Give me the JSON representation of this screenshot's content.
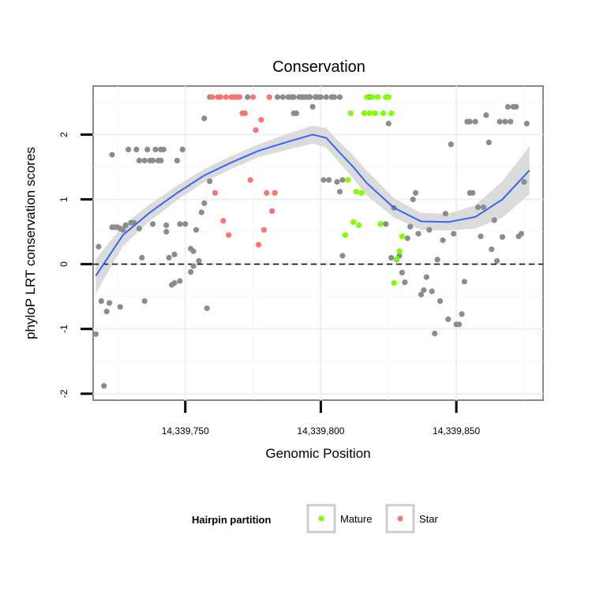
{
  "chart_data": {
    "type": "scatter",
    "title": "Conservation",
    "xlabel": "Genomic Position",
    "ylabel": "phyloP LRT conservation scores",
    "xlim": [
      14339716,
      14339882
    ],
    "ylim": [
      -2.1,
      2.75
    ],
    "x_ticks": [
      {
        "value": 14339750,
        "label": "14,339,750"
      },
      {
        "value": 14339800,
        "label": "14,339,800"
      },
      {
        "value": 14339850,
        "label": "14,339,850"
      }
    ],
    "y_ticks": [
      {
        "value": -2,
        "label": "-2"
      },
      {
        "value": -1,
        "label": "-1"
      },
      {
        "value": 0,
        "label": "0"
      },
      {
        "value": 1,
        "label": "1"
      },
      {
        "value": 2,
        "label": "2"
      }
    ],
    "reference_line": {
      "y": 0,
      "style": "dashed"
    },
    "legend": {
      "title": "Hairpin partition",
      "position": "bottom",
      "entries": [
        {
          "label": "Mature",
          "color": "#7fff00"
        },
        {
          "label": "Star",
          "color": "#f8766d"
        }
      ]
    },
    "colors": {
      "other": "#8c8c8c",
      "Mature": "#7fff00",
      "Star": "#f8766d",
      "smooth": "#3366ff",
      "band": "#d9d9d9"
    },
    "series": [
      {
        "name": "Other",
        "points": [
          [
            14339717,
            -1.08
          ],
          [
            14339718,
            0.27
          ],
          [
            14339719,
            -0.57
          ],
          [
            14339720,
            -1.88
          ],
          [
            14339721,
            -0.73
          ],
          [
            14339722,
            -0.6
          ],
          [
            14339723,
            1.69
          ],
          [
            14339723,
            0.57
          ],
          [
            14339724,
            0.57
          ],
          [
            14339725,
            0.57
          ],
          [
            14339726,
            -0.66
          ],
          [
            14339726,
            0.55
          ],
          [
            14339727,
            0.53
          ],
          [
            14339728,
            0.6
          ],
          [
            14339729,
            1.77
          ],
          [
            14339730,
            0.64
          ],
          [
            14339731,
            0.64
          ],
          [
            14339732,
            1.77
          ],
          [
            14339733,
            0.55
          ],
          [
            14339733,
            1.6
          ],
          [
            14339734,
            0.1
          ],
          [
            14339735,
            1.6
          ],
          [
            14339735,
            -0.57
          ],
          [
            14339736,
            1.77
          ],
          [
            14339737,
            1.6
          ],
          [
            14339738,
            0.62
          ],
          [
            14339738,
            1.6
          ],
          [
            14339739,
            1.77
          ],
          [
            14339740,
            1.6
          ],
          [
            14339741,
            1.77
          ],
          [
            14339741,
            1.6
          ],
          [
            14339742,
            1.77
          ],
          [
            14339743,
            0.6
          ],
          [
            14339743,
            0.5
          ],
          [
            14339744,
            0.1
          ],
          [
            14339745,
            -0.32
          ],
          [
            14339746,
            0.15
          ],
          [
            14339746,
            -0.29
          ],
          [
            14339747,
            1.6
          ],
          [
            14339748,
            0.62
          ],
          [
            14339748,
            -0.26
          ],
          [
            14339749,
            1.77
          ],
          [
            14339750,
            0.62
          ],
          [
            14339752,
            0.24
          ],
          [
            14339752,
            -0.12
          ],
          [
            14339753,
            0.2
          ],
          [
            14339753,
            -0.03
          ],
          [
            14339754,
            0.53
          ],
          [
            14339755,
            0.05
          ],
          [
            14339756,
            0.8
          ],
          [
            14339757,
            0.94
          ],
          [
            14339757,
            2.25
          ],
          [
            14339758,
            -0.68
          ],
          [
            14339759,
            1.28
          ],
          [
            14339759,
            2.58
          ],
          [
            14339773,
            2.58
          ],
          [
            14339784,
            2.58
          ],
          [
            14339786,
            2.58
          ],
          [
            14339788,
            2.58
          ],
          [
            14339789,
            2.58
          ],
          [
            14339790,
            2.58
          ],
          [
            14339790,
            2.33
          ],
          [
            14339791,
            2.33
          ],
          [
            14339792,
            2.58
          ],
          [
            14339793,
            2.58
          ],
          [
            14339794,
            2.58
          ],
          [
            14339795,
            2.58
          ],
          [
            14339796,
            2.58
          ],
          [
            14339797,
            2.43
          ],
          [
            14339798,
            2.58
          ],
          [
            14339799,
            2.58
          ],
          [
            14339800,
            2.58
          ],
          [
            14339801,
            1.3
          ],
          [
            14339802,
            2.58
          ],
          [
            14339803,
            1.3
          ],
          [
            14339804,
            2.58
          ],
          [
            14339805,
            2.58
          ],
          [
            14339806,
            1.27
          ],
          [
            14339807,
            2.58
          ],
          [
            14339807,
            1.12
          ],
          [
            14339808,
            1.3
          ],
          [
            14339808,
            0.13
          ],
          [
            14339818,
            2.58
          ],
          [
            14339824,
            0.62
          ],
          [
            14339825,
            2.17
          ],
          [
            14339826,
            0.1
          ],
          [
            14339827,
            0.87
          ],
          [
            14339828,
            0.07
          ],
          [
            14339829,
            0.13
          ],
          [
            14339830,
            -0.13
          ],
          [
            14339831,
            -0.28
          ],
          [
            14339832,
            0.4
          ],
          [
            14339833,
            0.58
          ],
          [
            14339834,
            1.0
          ],
          [
            14339835,
            1.1
          ],
          [
            14339836,
            0.47
          ],
          [
            14339837,
            -0.47
          ],
          [
            14339838,
            -0.4
          ],
          [
            14339839,
            -0.2
          ],
          [
            14339840,
            0.53
          ],
          [
            14339841,
            -0.42
          ],
          [
            14339842,
            -1.07
          ],
          [
            14339843,
            0.07
          ],
          [
            14339844,
            -0.57
          ],
          [
            14339845,
            0.37
          ],
          [
            14339846,
            0.78
          ],
          [
            14339847,
            -0.85
          ],
          [
            14339848,
            1.85
          ],
          [
            14339849,
            0.47
          ],
          [
            14339850,
            -0.93
          ],
          [
            14339851,
            -0.93
          ],
          [
            14339852,
            -0.77
          ],
          [
            14339853,
            -0.27
          ],
          [
            14339854,
            2.2
          ],
          [
            14339855,
            2.2
          ],
          [
            14339855,
            1.1
          ],
          [
            14339856,
            1.1
          ],
          [
            14339857,
            2.2
          ],
          [
            14339858,
            0.88
          ],
          [
            14339859,
            0.43
          ],
          [
            14339860,
            0.88
          ],
          [
            14339861,
            2.3
          ],
          [
            14339862,
            1.88
          ],
          [
            14339863,
            0.23
          ],
          [
            14339864,
            0.68
          ],
          [
            14339865,
            0.05
          ],
          [
            14339866,
            2.2
          ],
          [
            14339867,
            0.42
          ],
          [
            14339868,
            2.2
          ],
          [
            14339869,
            2.43
          ],
          [
            14339870,
            2.2
          ],
          [
            14339871,
            2.43
          ],
          [
            14339872,
            2.43
          ],
          [
            14339873,
            0.43
          ],
          [
            14339874,
            0.47
          ],
          [
            14339875,
            1.27
          ],
          [
            14339876,
            2.17
          ]
        ]
      },
      {
        "name": "Star",
        "points": [
          [
            14339760,
            2.58
          ],
          [
            14339761,
            1.1
          ],
          [
            14339762,
            2.58
          ],
          [
            14339763,
            2.58
          ],
          [
            14339764,
            0.67
          ],
          [
            14339765,
            2.58
          ],
          [
            14339766,
            0.45
          ],
          [
            14339767,
            2.58
          ],
          [
            14339768,
            2.58
          ],
          [
            14339769,
            2.58
          ],
          [
            14339770,
            2.58
          ],
          [
            14339771,
            2.33
          ],
          [
            14339772,
            2.33
          ],
          [
            14339774,
            1.3
          ],
          [
            14339775,
            2.58
          ],
          [
            14339776,
            2.07
          ],
          [
            14339777,
            0.3
          ],
          [
            14339778,
            2.23
          ],
          [
            14339779,
            0.53
          ],
          [
            14339780,
            1.1
          ],
          [
            14339781,
            2.58
          ],
          [
            14339782,
            0.82
          ],
          [
            14339783,
            1.1
          ]
        ]
      },
      {
        "name": "Mature",
        "points": [
          [
            14339809,
            0.45
          ],
          [
            14339810,
            1.3
          ],
          [
            14339811,
            2.33
          ],
          [
            14339812,
            0.65
          ],
          [
            14339813,
            1.12
          ],
          [
            14339814,
            0.6
          ],
          [
            14339815,
            1.1
          ],
          [
            14339816,
            2.33
          ],
          [
            14339817,
            2.58
          ],
          [
            14339818,
            2.33
          ],
          [
            14339819,
            2.58
          ],
          [
            14339820,
            2.33
          ],
          [
            14339821,
            2.58
          ],
          [
            14339822,
            0.62
          ],
          [
            14339823,
            2.33
          ],
          [
            14339824,
            2.58
          ],
          [
            14339825,
            2.58
          ],
          [
            14339826,
            2.33
          ],
          [
            14339827,
            -0.29
          ],
          [
            14339828,
            0.08
          ],
          [
            14339829,
            0.2
          ],
          [
            14339830,
            0.43
          ]
        ]
      }
    ],
    "smooth": {
      "method": "loess",
      "x": [
        14339717,
        14339727,
        14339737,
        14339747,
        14339757,
        14339767,
        14339777,
        14339787,
        14339797,
        14339802,
        14339807,
        14339812,
        14339817,
        14339827,
        14339837,
        14339847,
        14339857,
        14339867,
        14339877
      ],
      "y": [
        -0.18,
        0.45,
        0.8,
        1.1,
        1.37,
        1.57,
        1.75,
        1.88,
        2.0,
        1.95,
        1.72,
        1.5,
        1.25,
        0.87,
        0.66,
        0.65,
        0.73,
        1.0,
        1.45
      ],
      "lower": [
        -0.45,
        0.28,
        0.67,
        0.99,
        1.27,
        1.47,
        1.65,
        1.76,
        1.86,
        1.8,
        1.56,
        1.32,
        1.06,
        0.72,
        0.53,
        0.52,
        0.55,
        0.72,
        1.08
      ],
      "upper": [
        0.08,
        0.6,
        0.93,
        1.21,
        1.47,
        1.67,
        1.85,
        2.0,
        2.14,
        2.1,
        1.88,
        1.68,
        1.44,
        1.02,
        0.79,
        0.78,
        0.91,
        1.28,
        1.82
      ]
    }
  }
}
